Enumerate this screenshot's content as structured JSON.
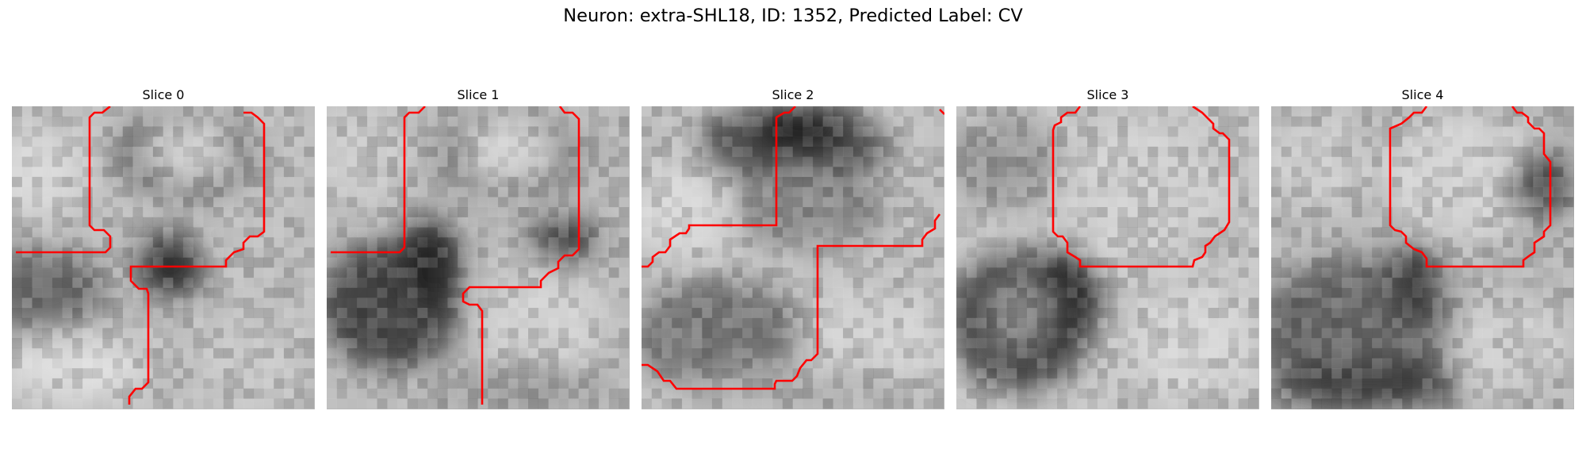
{
  "figure": {
    "title": "Neuron: extra-SHL18, ID: 1352, Predicted Label: CV"
  },
  "panels": [
    {
      "title": "Slice 0"
    },
    {
      "title": "Slice 1"
    },
    {
      "title": "Slice 2"
    },
    {
      "title": "Slice 3"
    },
    {
      "title": "Slice 4"
    }
  ],
  "colors": {
    "contour": "#ff0000",
    "colormap": "grayscale"
  }
}
